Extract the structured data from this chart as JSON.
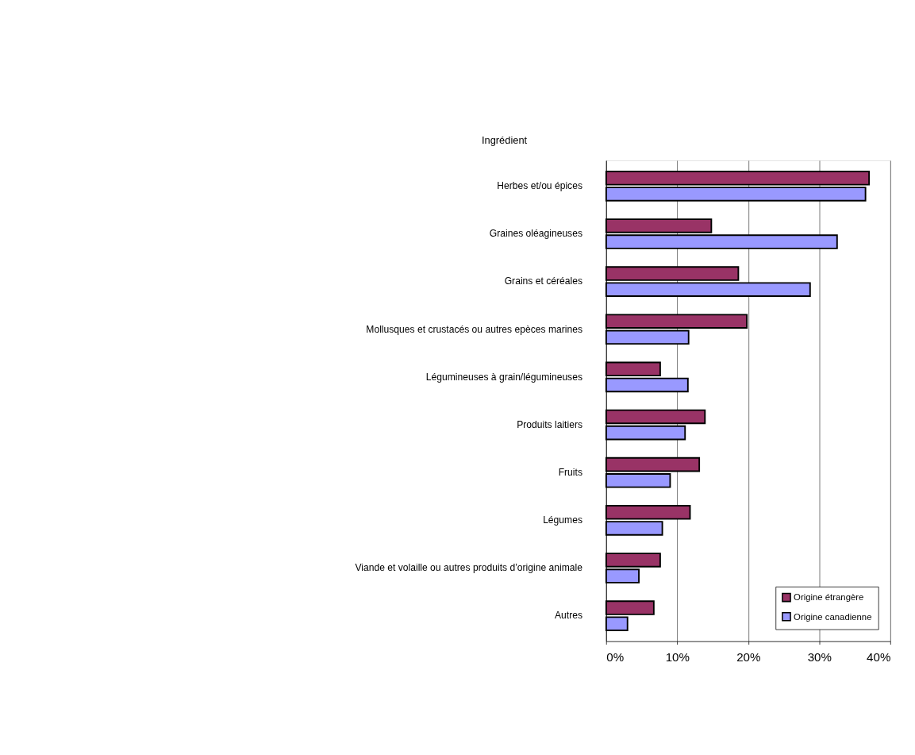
{
  "chart_data": {
    "type": "bar",
    "orientation": "horizontal",
    "ylabel": "Ingrédient",
    "categories": [
      "Herbes et/ou épices",
      "Graines oléagineuses",
      "Grains et céréales",
      "Mollusques et crustacés ou autres epèces marines",
      "Légumineuses à grain/légumineuses",
      "Produits laitiers",
      "Fruits",
      "Légumes",
      "Viande et volaille ou autres produits d’origine animale",
      "Autres"
    ],
    "series": [
      {
        "name": "Origine étrangère",
        "color": "#993366",
        "values": [
          37,
          14.8,
          18.6,
          19.8,
          7.6,
          13.9,
          13.1,
          11.8,
          7.6,
          6.7
        ]
      },
      {
        "name": "Origine canadienne",
        "color": "#9999ff",
        "values": [
          36.5,
          32.5,
          28.7,
          11.6,
          11.5,
          11.1,
          9,
          7.9,
          4.6,
          3
        ]
      }
    ],
    "xlim": [
      0,
      40
    ],
    "xticks": [
      {
        "value": 0,
        "label": "0%"
      },
      {
        "value": 10,
        "label": "10%"
      },
      {
        "value": 20,
        "label": "20%"
      },
      {
        "value": 30,
        "label": "30%"
      },
      {
        "value": 40,
        "label": "40%"
      }
    ],
    "grid": "x",
    "legend": "bottom right"
  }
}
